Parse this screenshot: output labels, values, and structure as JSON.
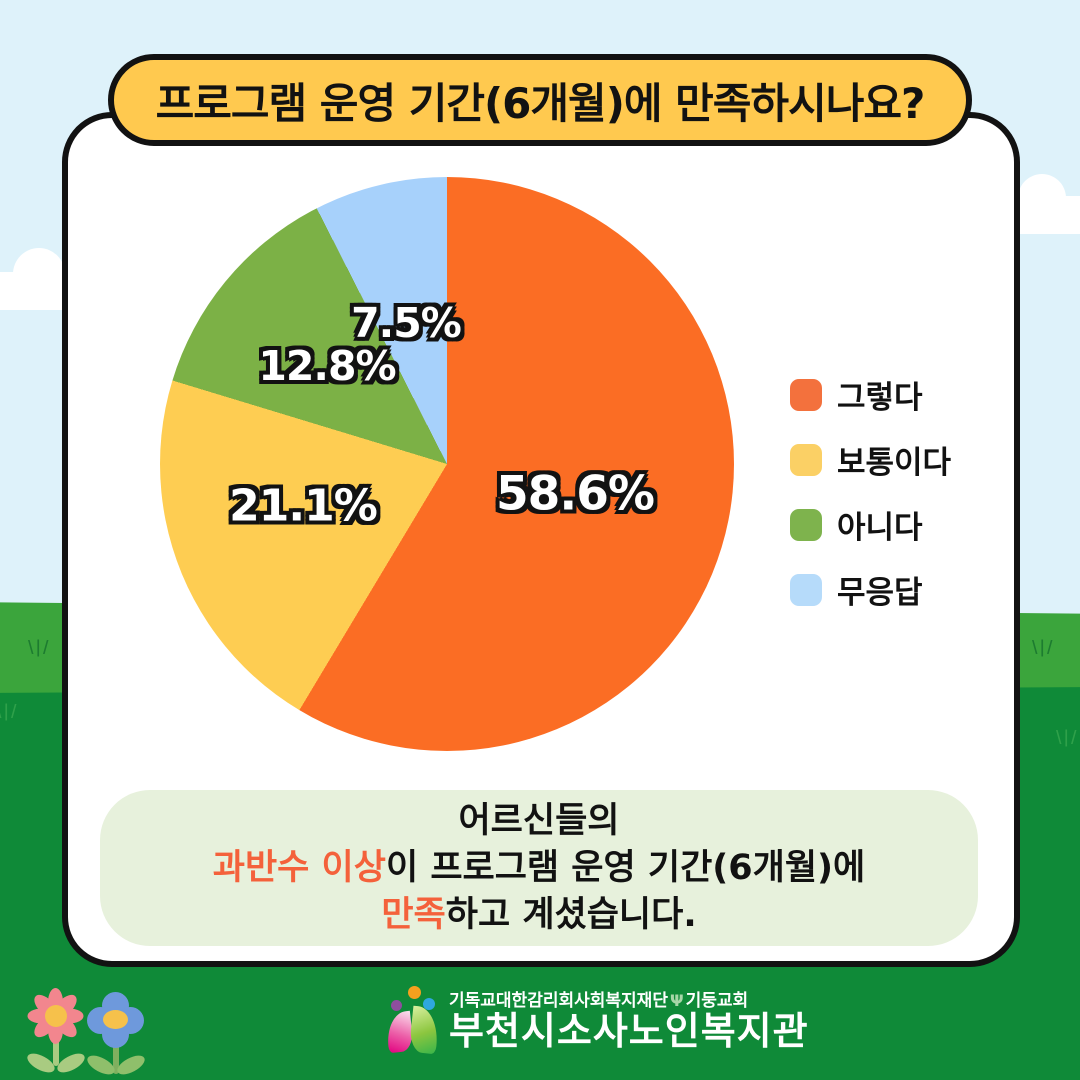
{
  "title": "프로그램 운영 기간(6개월)에 만족하시나요?",
  "chart_data": {
    "type": "pie",
    "title": "프로그램 운영 기간(6개월)에 만족하시나요?",
    "categories": [
      "그렇다",
      "보통이다",
      "아니다",
      "무응답"
    ],
    "values": [
      58.6,
      21.1,
      12.8,
      7.5
    ],
    "unit": "%",
    "value_labels": [
      "58.6%",
      "21.1%",
      "12.8%",
      "7.5%"
    ],
    "colors": [
      "#FB6D24",
      "#FECD52",
      "#7CB146",
      "#A7D1FB"
    ],
    "start_angle": "top",
    "direction": "clockwise",
    "legend_position": "right"
  },
  "legend": {
    "items": [
      {
        "label": "그렇다",
        "color": "#F3713D"
      },
      {
        "label": "보통이다",
        "color": "#FBD065"
      },
      {
        "label": "아니다",
        "color": "#7EB34D"
      },
      {
        "label": "무응답",
        "color": "#B6DBFA"
      }
    ]
  },
  "summary": {
    "line1": "어르신들의",
    "line2_accent": "과반수 이상",
    "line2_rest": "이 프로그램 운영 기간(6개월)에",
    "line3_accent": "만족",
    "line3_rest": "하고 계셨습니다.",
    "accent_color": "#F4613B"
  },
  "footer": {
    "affiliation_left": "기독교대한감리회사회복지재단",
    "emblem_icon": "church-emblem-icon",
    "emblem_glyph": "Ψ",
    "affiliation_right": "기둥교회",
    "org_name": "부천시소사노인복지관"
  },
  "background": {
    "grass_glyph": "\\|/",
    "sky_color": "#DEF2FA",
    "hill_light_color": "#3BA53C",
    "hill_dark_color": "#0F8A38",
    "banner_color": "#FFC94F",
    "card_color": "#FFFFFF",
    "summary_box_color": "#E7F1DC"
  }
}
